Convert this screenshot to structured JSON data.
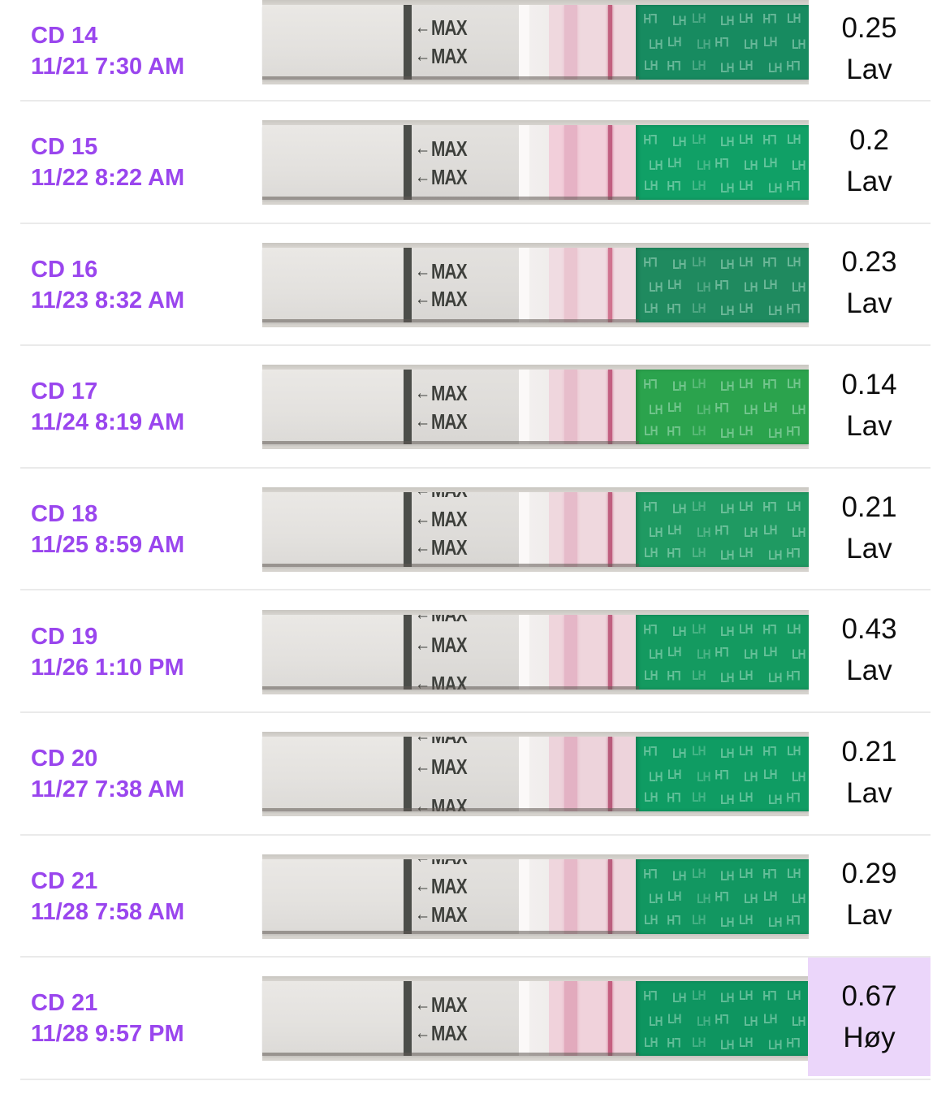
{
  "page": {
    "background": "#FFFFFF"
  },
  "colors": {
    "accent_purple": "#9A46EE",
    "value_text": "#0D0D0D",
    "divider": "#EAEAEA",
    "highlight_bg": "#EBD6FA",
    "max_text": "#3E403C",
    "photo_backdrop": "#D7D4CF"
  },
  "strip_common": {
    "max_arrow": "←",
    "max_label": "MAX",
    "handle_letters": "LH"
  },
  "rows": [
    {
      "cycle_day": "CD 14",
      "datetime": "11/21 7:30 AM",
      "value": "0.25",
      "level": "Lav",
      "highlighted": false,
      "strip": {
        "green": "#178B60",
        "pink": "#EFD8DE",
        "faint_line": "#E3B3C5",
        "control_line": "#C2607E",
        "max_labels": "two"
      }
    },
    {
      "cycle_day": "CD 15",
      "datetime": "11/22 8:22 AM",
      "value": "0.2",
      "level": "Lav",
      "highlighted": false,
      "strip": {
        "green": "#10A066",
        "pink": "#F2CFDA",
        "faint_line": "#E2A9BE",
        "control_line": "#C05E80",
        "max_labels": "two"
      }
    },
    {
      "cycle_day": "CD 16",
      "datetime": "11/23 8:32 AM",
      "value": "0.23",
      "level": "Lav",
      "highlighted": false,
      "strip": {
        "green": "#1F8A5F",
        "pink": "#F0DCE2",
        "faint_line": "#E8BECB",
        "control_line": "#D0738F",
        "max_labels": "two"
      }
    },
    {
      "cycle_day": "CD 17",
      "datetime": "11/24 8:19 AM",
      "value": "0.14",
      "level": "Lav",
      "highlighted": false,
      "strip": {
        "green": "#2BA34D",
        "pink": "#EFD6DD",
        "faint_line": "#E5B5C6",
        "control_line": "#C25E80",
        "max_labels": "two"
      }
    },
    {
      "cycle_day": "CD 18",
      "datetime": "11/25 8:59 AM",
      "value": "0.21",
      "level": "Lav",
      "highlighted": false,
      "strip": {
        "green": "#1F9A62",
        "pink": "#EFD8DE",
        "faint_line": "#E4B2C4",
        "control_line": "#BF5E7E",
        "max_labels": "topclip"
      }
    },
    {
      "cycle_day": "CD 19",
      "datetime": "11/26 1:10 PM",
      "value": "0.43",
      "level": "Lav",
      "highlighted": false,
      "strip": {
        "green": "#149A60",
        "pink": "#EFD5DC",
        "faint_line": "#E2ACC0",
        "control_line": "#C06080",
        "max_labels": "three"
      }
    },
    {
      "cycle_day": "CD 20",
      "datetime": "11/27 7:38 AM",
      "value": "0.21",
      "level": "Lav",
      "highlighted": false,
      "strip": {
        "green": "#0F9C63",
        "pink": "#EDD3DB",
        "faint_line": "#E0A8BD",
        "control_line": "#B85B7B",
        "max_labels": "three"
      }
    },
    {
      "cycle_day": "CD 21",
      "datetime": "11/28 7:58 AM",
      "value": "0.29",
      "level": "Lav",
      "highlighted": false,
      "strip": {
        "green": "#129761",
        "pink": "#EFD6DD",
        "faint_line": "#E3AFC2",
        "control_line": "#BB5E7E",
        "max_labels": "topclip"
      }
    },
    {
      "cycle_day": "CD 21",
      "datetime": "11/28 9:57 PM",
      "value": "0.67",
      "level": "Høy",
      "highlighted": true,
      "strip": {
        "green": "#0E9560",
        "pink": "#F0D2DB",
        "faint_line": "#DE9DB4",
        "control_line": "#C55F80",
        "max_labels": "two"
      }
    }
  ]
}
